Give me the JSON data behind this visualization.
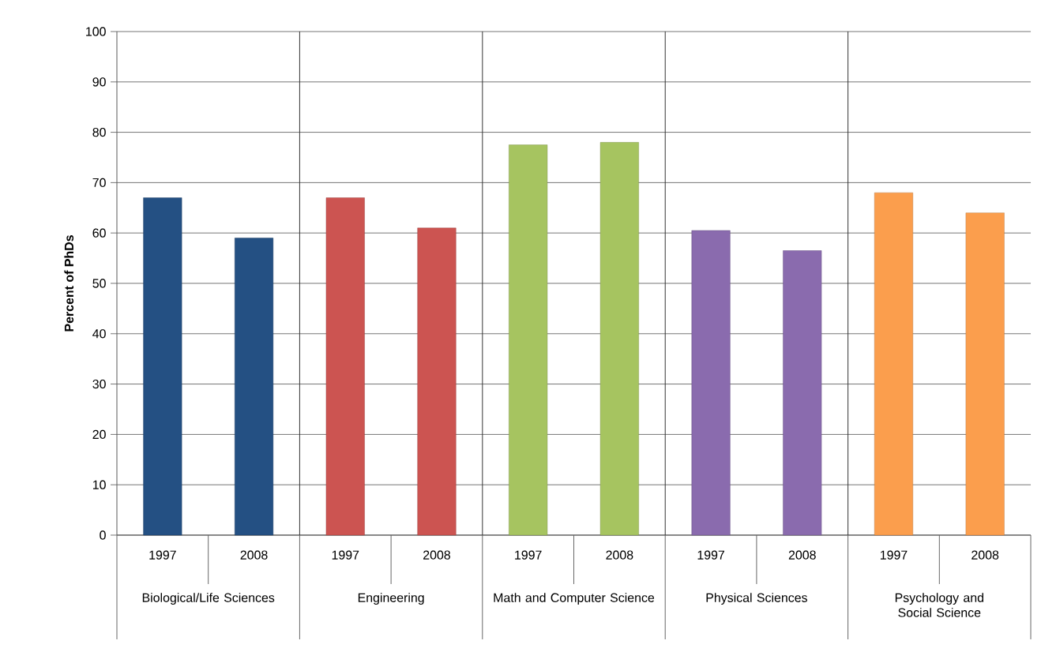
{
  "chart_data": {
    "type": "bar",
    "ylabel": "Percent of PhDs",
    "categories": [
      "1997",
      "2008",
      "1997",
      "2008",
      "1997",
      "2008",
      "1997",
      "2008",
      "1997",
      "2008"
    ],
    "values": [
      67,
      59,
      67,
      61,
      77.5,
      78,
      60.5,
      56.5,
      68,
      64
    ],
    "colors": [
      "#245083",
      "#245083",
      "#cc5451",
      "#cc5451",
      "#a6c460",
      "#a6c460",
      "#8a6bae",
      "#8a6bae",
      "#fb9e4d",
      "#fb9e4d"
    ],
    "ylim": [
      0,
      100
    ],
    "yticks": [
      0,
      10,
      20,
      30,
      40,
      50,
      60,
      70,
      80,
      90,
      100
    ],
    "grid": "y",
    "annotations": [
      "Biological/Life Sciences",
      "Engineering",
      "Math and Computer Science",
      "Physical Sciences",
      "Psychology and Social Science"
    ]
  }
}
